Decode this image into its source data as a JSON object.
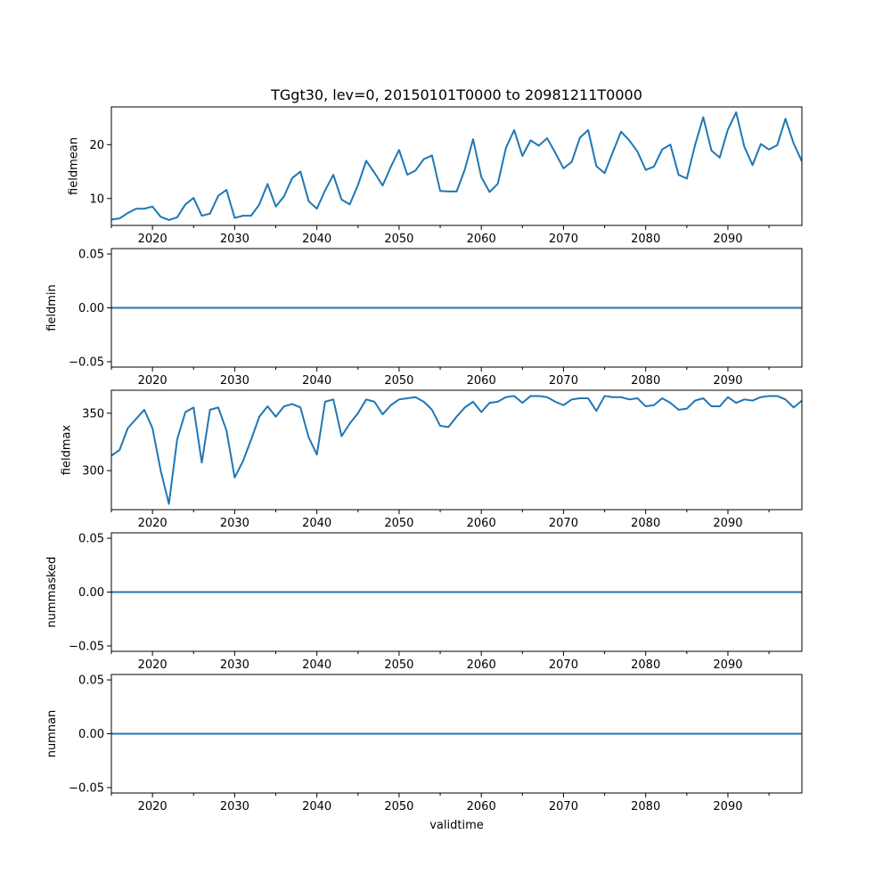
{
  "chart_data": {
    "type": "line",
    "title": "TGgt30, lev=0, 20150101T0000 to 20981211T0000",
    "xlabel": "validtime",
    "x_start": 2015,
    "x_end": 2098,
    "xlim": [
      2015,
      2099
    ],
    "x_major_ticks": [
      2020,
      2030,
      2040,
      2050,
      2060,
      2070,
      2080,
      2090
    ],
    "x_tick_labels": [
      "2020",
      "2030",
      "2040",
      "2050",
      "2060",
      "2070",
      "2080",
      "2090"
    ],
    "line_color": "#1f77b4",
    "panels": [
      {
        "id": "fieldmean",
        "ylabel": "fieldmean",
        "ylim": [
          5.0,
          27.0
        ],
        "yticks": [
          10,
          20
        ],
        "ytick_labels": [
          "10",
          "20"
        ],
        "values": [
          6.1,
          6.3,
          7.3,
          8.1,
          8.1,
          8.5,
          6.6,
          6.0,
          6.5,
          8.9,
          10.1,
          6.8,
          7.2,
          10.5,
          11.6,
          6.4,
          6.8,
          6.8,
          8.9,
          12.7,
          8.5,
          10.4,
          13.8,
          15.0,
          9.5,
          8.1,
          11.5,
          14.4,
          9.8,
          8.9,
          12.5,
          17.0,
          14.8,
          12.4,
          15.9,
          19.0,
          14.4,
          15.2,
          17.3,
          18.0,
          11.4,
          11.3,
          11.3,
          15.4,
          21.0,
          14.0,
          11.2,
          12.7,
          19.4,
          22.7,
          17.9,
          20.8,
          19.8,
          21.2,
          18.5,
          15.6,
          16.8,
          21.3,
          22.7,
          16.0,
          14.7,
          18.6,
          22.4,
          20.8,
          18.7,
          15.3,
          15.9,
          19.1,
          20.0,
          14.4,
          13.7,
          19.9,
          25.1,
          18.9,
          17.6,
          22.8,
          26.0,
          19.6,
          16.2,
          20.1,
          19.1,
          19.9,
          24.8,
          20.2,
          16.9
        ]
      },
      {
        "id": "fieldmin",
        "ylabel": "fieldmin",
        "ylim": [
          -0.055,
          0.055
        ],
        "yticks": [
          -0.05,
          0.0,
          0.05
        ],
        "ytick_labels": [
          "−0.05",
          "0.00",
          "0.05"
        ],
        "constant": 0.0
      },
      {
        "id": "fieldmax",
        "ylabel": "fieldmax",
        "ylim": [
          266,
          370
        ],
        "yticks": [
          300,
          350
        ],
        "ytick_labels": [
          "300",
          "350"
        ],
        "values": [
          313,
          318,
          337,
          345,
          353,
          337,
          300,
          271,
          327,
          351,
          355,
          307,
          353,
          355,
          335,
          294,
          308,
          327,
          347,
          356,
          347,
          356,
          358,
          355,
          329,
          314,
          360,
          362,
          330,
          341,
          350,
          362,
          360,
          349,
          357,
          362,
          363,
          364,
          360,
          353,
          339,
          338,
          347,
          355,
          360,
          351,
          359,
          360,
          364,
          365,
          359,
          365,
          365,
          364,
          360,
          357,
          362,
          363,
          363,
          352,
          365,
          364,
          364,
          362,
          363,
          356,
          357,
          363,
          359,
          353,
          354,
          361,
          363,
          356,
          356,
          364,
          359,
          362,
          361,
          364,
          365,
          365,
          362,
          355,
          361
        ]
      },
      {
        "id": "nummasked",
        "ylabel": "nummasked",
        "ylim": [
          -0.055,
          0.055
        ],
        "yticks": [
          -0.05,
          0.0,
          0.05
        ],
        "ytick_labels": [
          "−0.05",
          "0.00",
          "0.05"
        ],
        "constant": 0.0
      },
      {
        "id": "numnan",
        "ylabel": "numnan",
        "ylim": [
          -0.055,
          0.055
        ],
        "yticks": [
          -0.05,
          0.0,
          0.05
        ],
        "ytick_labels": [
          "−0.05",
          "0.00",
          "0.05"
        ],
        "constant": 0.0
      }
    ]
  }
}
